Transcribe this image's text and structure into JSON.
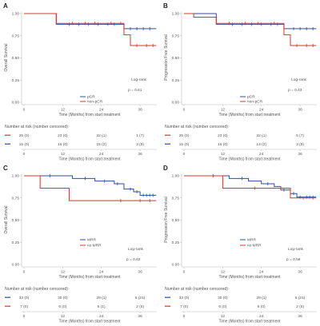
{
  "chart_data": [
    {
      "panel_label": "A",
      "type": "line",
      "ylabel": "Overall Survival",
      "xlabel": "Time (Months) from start treatment",
      "xlim": [
        0,
        41
      ],
      "ylim": [
        0,
        1
      ],
      "xticks": [
        0,
        12,
        24,
        36
      ],
      "yticks": [
        1,
        0.75,
        0.5,
        0.25,
        0
      ],
      "ytick_labels": [
        "1.00",
        "0.75",
        "0.50",
        "0.25",
        "0.00"
      ],
      "grid": false,
      "legend_position": "bottom",
      "series": [
        {
          "name": "pCR",
          "color": "#2e4d9c",
          "time": [
            0,
            10,
            31
          ],
          "survival": [
            1,
            0.88,
            0.83
          ],
          "censored": [
            14,
            17,
            20,
            23,
            26,
            28,
            33,
            35,
            37,
            39
          ],
          "last_followup": 41
        },
        {
          "name": "non-pCR",
          "color": "#d9342b",
          "time": [
            0,
            10,
            31,
            33
          ],
          "survival": [
            1,
            0.89,
            0.76,
            0.64
          ],
          "censored": [
            15,
            19,
            22,
            27,
            30,
            35,
            38,
            40
          ],
          "last_followup": 41
        }
      ],
      "test": {
        "label": "Log-rank",
        "p": "p = 0.61"
      },
      "risk_table": {
        "title": "Number at risk (number censored)",
        "xticks": [
          0,
          12,
          24,
          36
        ],
        "xlabel": "Time (Months) from start treatment",
        "rows": [
          {
            "color": "#d9342b",
            "values": [
              "25 (0)",
              "23 (0)",
              "22 (1)",
              "1 (7)"
            ]
          },
          {
            "color": "#2e4d9c",
            "values": [
              "15 (0)",
              "15 (0)",
              "15 (2)",
              "3 (9)"
            ]
          }
        ]
      }
    },
    {
      "panel_label": "B",
      "type": "line",
      "ylabel": "Progression Free Survival",
      "xlabel": "Time (Months) from start treatment",
      "xlim": [
        0,
        41
      ],
      "ylim": [
        0,
        1
      ],
      "xticks": [
        0,
        12,
        24,
        36
      ],
      "yticks": [
        1,
        0.75,
        0.5,
        0.25,
        0
      ],
      "ytick_labels": [
        "1.00",
        "0.75",
        "0.50",
        "0.25",
        "0.00"
      ],
      "grid": false,
      "legend_position": "bottom",
      "series": [
        {
          "name": "pCR",
          "color": "#2e4d9c",
          "time": [
            0,
            10,
            31
          ],
          "survival": [
            1,
            0.88,
            0.83
          ],
          "censored": [
            15,
            18,
            21,
            24,
            27,
            29,
            34,
            36,
            38,
            40
          ],
          "last_followup": 41
        },
        {
          "name": "non-pCR",
          "color": "#d9342b",
          "time": [
            0,
            3,
            10,
            31,
            33
          ],
          "survival": [
            1,
            0.96,
            0.89,
            0.76,
            0.64
          ],
          "censored": [
            14,
            19,
            23,
            28,
            35,
            38,
            40
          ],
          "last_followup": 41
        }
      ],
      "test": {
        "label": "Log-rank",
        "p": "p = 0.43"
      },
      "risk_table": {
        "title": "Number at risk (number censored)",
        "xticks": [
          0,
          12,
          24,
          36
        ],
        "xlabel": "Time (Months) from start treatment",
        "rows": [
          {
            "color": "#d9342b",
            "values": [
              "25 (0)",
              "23 (0)",
              "22 (1)",
              "5 (7)"
            ]
          },
          {
            "color": "#2e4d9c",
            "values": [
              "15 (0)",
              "15 (0)",
              "14 (2)",
              "3 (9)"
            ]
          }
        ]
      }
    },
    {
      "panel_label": "C",
      "type": "line",
      "ylabel": "Overall Survival",
      "xlabel": "Time (Months) from start treatment",
      "xlim": [
        0,
        41
      ],
      "ylim": [
        0,
        1
      ],
      "xticks": [
        0,
        12,
        24,
        36
      ],
      "yticks": [
        1,
        0.75,
        0.5,
        0.25,
        0
      ],
      "ytick_labels": [
        "1.00",
        "0.75",
        "0.50",
        "0.25",
        "0.00"
      ],
      "grid": false,
      "legend_position": "bottom",
      "series": [
        {
          "name": "MRR",
          "color": "#2e4d9c",
          "time": [
            0,
            15,
            22,
            28,
            31,
            34,
            36
          ],
          "survival": [
            1,
            0.97,
            0.94,
            0.91,
            0.85,
            0.82,
            0.78
          ],
          "censored": [
            8,
            19,
            25,
            29,
            33,
            35,
            37,
            38,
            39,
            40
          ],
          "last_followup": 41
        },
        {
          "name": "no MRR",
          "color": "#d9342b",
          "time": [
            0,
            5,
            14
          ],
          "survival": [
            1,
            0.86,
            0.72
          ],
          "censored": [
            30,
            36,
            39
          ],
          "last_followup": 41
        }
      ],
      "test": {
        "label": "Log-rank",
        "p": "p = 0.62"
      },
      "risk_table": {
        "title": "Number at risk (number censored)",
        "xticks": [
          0,
          12,
          24,
          36
        ],
        "xlabel": "Time (Months) from start treatment",
        "rows": [
          {
            "color": "#2e4d9c",
            "values": [
              "33 (0)",
              "30 (0)",
              "29 (1)",
              "6 (21)"
            ]
          },
          {
            "color": "#d9342b",
            "values": [
              "7 (0)",
              "6 (0)",
              "5 (1)",
              "2 (5)"
            ]
          }
        ]
      }
    },
    {
      "panel_label": "D",
      "type": "line",
      "ylabel": "Progression Free Survival",
      "xlabel": "Time (Months) from start treatment",
      "xlim": [
        0,
        41
      ],
      "ylim": [
        0,
        1
      ],
      "xticks": [
        0,
        12,
        24,
        36
      ],
      "yticks": [
        1,
        0.75,
        0.5,
        0.25,
        0
      ],
      "ytick_labels": [
        "1.00",
        "0.75",
        "0.50",
        "0.25",
        "0.00"
      ],
      "grid": false,
      "legend_position": "bottom",
      "series": [
        {
          "name": "MRR",
          "color": "#2e4d9c",
          "time": [
            0,
            14,
            20,
            24,
            28,
            30,
            33,
            35
          ],
          "survival": [
            1,
            0.97,
            0.94,
            0.91,
            0.88,
            0.84,
            0.8,
            0.76
          ],
          "censored": [
            9,
            18,
            26,
            31,
            34,
            36,
            38,
            39,
            40
          ],
          "last_followup": 41
        },
        {
          "name": "no MRR",
          "color": "#d9342b",
          "time": [
            0,
            12,
            33
          ],
          "survival": [
            1,
            0.86,
            0.75
          ],
          "censored": [
            22,
            30,
            37,
            40
          ],
          "last_followup": 41
        }
      ],
      "test": {
        "label": "Log-rank",
        "p": "p = 0.58"
      },
      "risk_table": {
        "title": "Number at risk (number censored)",
        "xticks": [
          0,
          12,
          24,
          36
        ],
        "xlabel": "Time (Months) from start treatment",
        "rows": [
          {
            "color": "#2e4d9c",
            "values": [
              "33 (0)",
              "30 (0)",
              "29 (1)",
              "6 (21)"
            ]
          },
          {
            "color": "#d9342b",
            "values": [
              "7 (0)",
              "6 (0)",
              "6 (0)",
              "2 (5)"
            ]
          }
        ]
      }
    }
  ]
}
